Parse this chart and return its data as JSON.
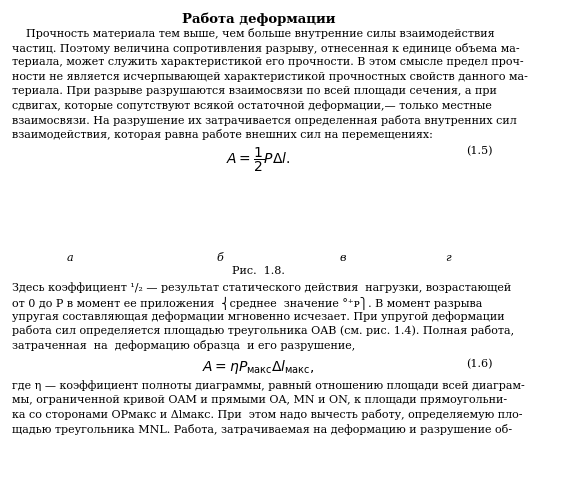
{
  "title": "Работа деформации",
  "background_color": "#ffffff",
  "text_color": "#000000",
  "paragraph1": "    Прочность материала тем выше, чем больше внутренние силы взаимодействия\nчастиц. Поэтому величина сопротивления разрыву, отнесенная к единице объема ма-\nтериала, может служить характеристикой его прочности. В этом смысле предел проч-\nности не является исчерпывающей характеристикой прочностных свойств данного ма-\nтериала. При разрыве разрушаются взаимосвязи по всей площади сечения, а при\nсдвигах, которые сопутствуют всякой остаточной деформации,— только местные\nвзаимосвязи. На разрушение их затрачивается определенная работа внутренних сил\nвзаимодействия, которая равна работе внешних сил на перемещениях:",
  "formula1": "$A = \\dfrac{1}{2} P\\Delta l.$",
  "formula1_number": "(1.5)",
  "fig_caption": "Рис.  1.8.",
  "labels_a": "а",
  "labels_b": "б",
  "labels_v": "в",
  "labels_g": "г",
  "paragraph2_line1": "Здесь коэффициент ",
  "paragraph2_line1b": " — результат статического действия  нагрузки, возрастающей",
  "paragraph2_superscript": "1",
  "paragraph2_subscript": "2",
  "paragraph2_line2a": "от 0 до ",
  "paragraph2_line2b": "P",
  "paragraph2_line2c": " в момент ее приложения",
  "paragraph2_fraction_top": "0 + P",
  "paragraph2_fraction_bot": "2",
  "paragraph2_line2d": "среднее  значение",
  "paragraph2_line2e": ". В момент разрыва",
  "paragraph2_line3": "упругая составляющая деформации мгновенно исчезает. При упругой деформации",
  "paragraph2_line4a": "работа сил определяется площадью треугольника ",
  "paragraph2_line4b": "OAB",
  "paragraph2_line4c": " (см. рис. 1.4). Полная работа,",
  "paragraph2_line5": "затраченная  на  деформацию образца  и его разрушение,",
  "formula2": "$A = \\eta P_{\\rm макс} \\Delta l_{\\rm макс},$",
  "formula2_number": "(1.6)",
  "paragraph3_line1a": "где η — коэффициент полноты диаграммы, равный отношению площади всей диаграм-",
  "paragraph3_line2a": "мы, ограниченной кривой ",
  "paragraph3_line2b": "OAM",
  "paragraph3_line2c": " и прямыми ",
  "paragraph3_line2d": "OA",
  "paragraph3_line2e": ", ",
  "paragraph3_line2f": "MN",
  "paragraph3_line2g": " и ",
  "paragraph3_line2h": "ON",
  "paragraph3_line2i": ", к площади прямоугольни-",
  "paragraph3_line3a": "ка со сторонами ",
  "paragraph3_line3b": "OP",
  "paragraph3_line3c": "макс",
  "paragraph3_line3d": " и Δ",
  "paragraph3_line3e": "l",
  "paragraph3_line3f": "макс",
  "paragraph3_line3g": ". При  этом надо вычесть работу, определяемую пло-",
  "paragraph3_line4a": "щадью треугольника ",
  "paragraph3_line4b": "MNL",
  "paragraph3_line4c": ". Работа, затрачиваемая на деформацию и разрушение об-"
}
